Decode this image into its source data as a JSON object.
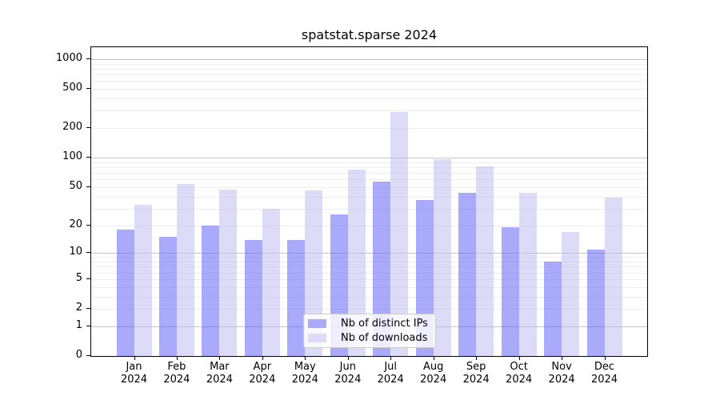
{
  "title": "spatstat.sparse 2024",
  "chart_data": {
    "type": "bar",
    "title": "spatstat.sparse 2024",
    "categories": [
      "Jan",
      "Feb",
      "Mar",
      "Apr",
      "May",
      "Jun",
      "Jul",
      "Aug",
      "Sep",
      "Oct",
      "Nov",
      "Dec"
    ],
    "year": "2024",
    "series": [
      {
        "name": "Nb of distinct IPs",
        "color": "#aaaaf9",
        "fill": "rgba(85,85,245,0.5)",
        "values": [
          18,
          15,
          20,
          14,
          14,
          26,
          57,
          37,
          44,
          19,
          8,
          11
        ]
      },
      {
        "name": "Nb of downloads",
        "color": "#dcdcf9",
        "fill": "rgba(185,185,242,0.5)",
        "values": [
          33,
          54,
          47,
          30,
          46,
          76,
          290,
          97,
          82,
          44,
          17,
          39
        ]
      }
    ],
    "yticks": [
      0,
      1,
      2,
      5,
      10,
      20,
      50,
      100,
      200,
      500,
      1000
    ],
    "ylim": [
      0,
      1320
    ],
    "yscale": "log10(1+x)",
    "grid": "both",
    "legend_position": "lower-center-inside",
    "xlabel": "",
    "ylabel": ""
  }
}
